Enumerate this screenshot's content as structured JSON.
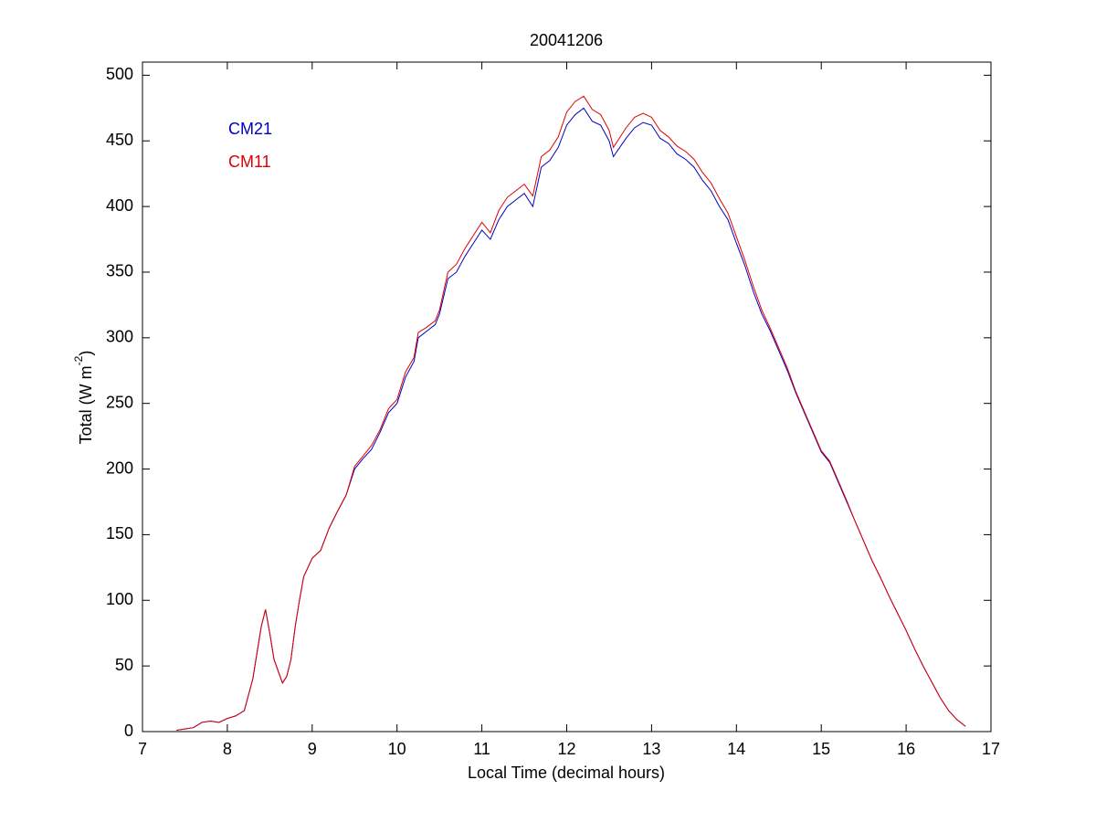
{
  "chart_data": {
    "type": "line",
    "title": "20041206",
    "xlabel": "Local Time (decimal hours)",
    "ylabel": [
      "Total (W m",
      "-2",
      ")"
    ],
    "x": [
      7.4,
      7.5,
      7.6,
      7.7,
      7.8,
      7.9,
      8.0,
      8.1,
      8.2,
      8.3,
      8.4,
      8.45,
      8.5,
      8.55,
      8.65,
      8.7,
      8.75,
      8.8,
      8.85,
      8.9,
      9.0,
      9.1,
      9.2,
      9.3,
      9.4,
      9.5,
      9.6,
      9.7,
      9.8,
      9.9,
      10.0,
      10.1,
      10.2,
      10.25,
      10.35,
      10.45,
      10.5,
      10.6,
      10.7,
      10.8,
      10.9,
      11.0,
      11.1,
      11.2,
      11.3,
      11.4,
      11.5,
      11.6,
      11.7,
      11.8,
      11.9,
      12.0,
      12.1,
      12.2,
      12.3,
      12.4,
      12.5,
      12.55,
      12.7,
      12.8,
      12.9,
      13.0,
      13.1,
      13.2,
      13.3,
      13.4,
      13.5,
      13.6,
      13.7,
      13.8,
      13.9,
      14.0,
      14.1,
      14.2,
      14.3,
      14.4,
      14.5,
      14.6,
      14.7,
      14.8,
      14.9,
      15.0,
      15.1,
      15.2,
      15.3,
      15.4,
      15.5,
      15.6,
      15.7,
      15.8,
      15.9,
      16.0,
      16.1,
      16.2,
      16.3,
      16.4,
      16.5,
      16.6,
      16.7
    ],
    "series": [
      {
        "name": "CM21",
        "color": "#0000c0",
        "values": [
          1,
          2,
          3,
          7,
          8,
          7,
          10,
          12,
          16,
          40,
          80,
          93,
          75,
          55,
          37,
          42,
          55,
          80,
          100,
          118,
          132,
          138,
          155,
          168,
          180,
          200,
          208,
          215,
          228,
          243,
          250,
          270,
          282,
          300,
          305,
          310,
          318,
          345,
          350,
          362,
          372,
          382,
          375,
          390,
          400,
          405,
          410,
          400,
          430,
          435,
          445,
          462,
          470,
          475,
          465,
          462,
          450,
          438,
          452,
          460,
          464,
          462,
          452,
          448,
          440,
          436,
          430,
          420,
          412,
          400,
          390,
          372,
          355,
          335,
          318,
          305,
          290,
          275,
          258,
          243,
          228,
          213,
          205,
          190,
          175,
          160,
          145,
          130,
          117,
          103,
          90,
          77,
          63,
          50,
          38,
          26,
          16,
          9,
          4
        ]
      },
      {
        "name": "CM11",
        "color": "#e00000",
        "values": [
          1,
          2,
          3,
          7,
          8,
          7,
          10,
          12,
          16,
          40,
          80,
          93,
          75,
          55,
          37,
          42,
          55,
          80,
          100,
          118,
          132,
          138,
          155,
          168,
          180,
          202,
          210,
          218,
          230,
          246,
          253,
          274,
          285,
          304,
          308,
          313,
          321,
          350,
          356,
          368,
          378,
          388,
          380,
          397,
          407,
          412,
          417,
          408,
          438,
          443,
          453,
          472,
          480,
          484,
          474,
          470,
          458,
          445,
          460,
          468,
          471,
          468,
          458,
          453,
          446,
          442,
          436,
          426,
          418,
          406,
          395,
          377,
          359,
          339,
          321,
          307,
          292,
          277,
          259,
          244,
          229,
          214,
          206,
          191,
          176,
          160,
          145,
          130,
          117,
          103,
          90,
          77,
          63,
          50,
          38,
          26,
          16,
          9,
          4
        ]
      }
    ],
    "xlim": [
      7,
      17
    ],
    "xticks": [
      7,
      8,
      9,
      10,
      11,
      12,
      13,
      14,
      15,
      16,
      17
    ],
    "ylim": [
      0,
      510
    ],
    "yticks": [
      0,
      50,
      100,
      150,
      200,
      250,
      300,
      350,
      400,
      450,
      500
    ],
    "grid": false,
    "legend": "upper left"
  }
}
